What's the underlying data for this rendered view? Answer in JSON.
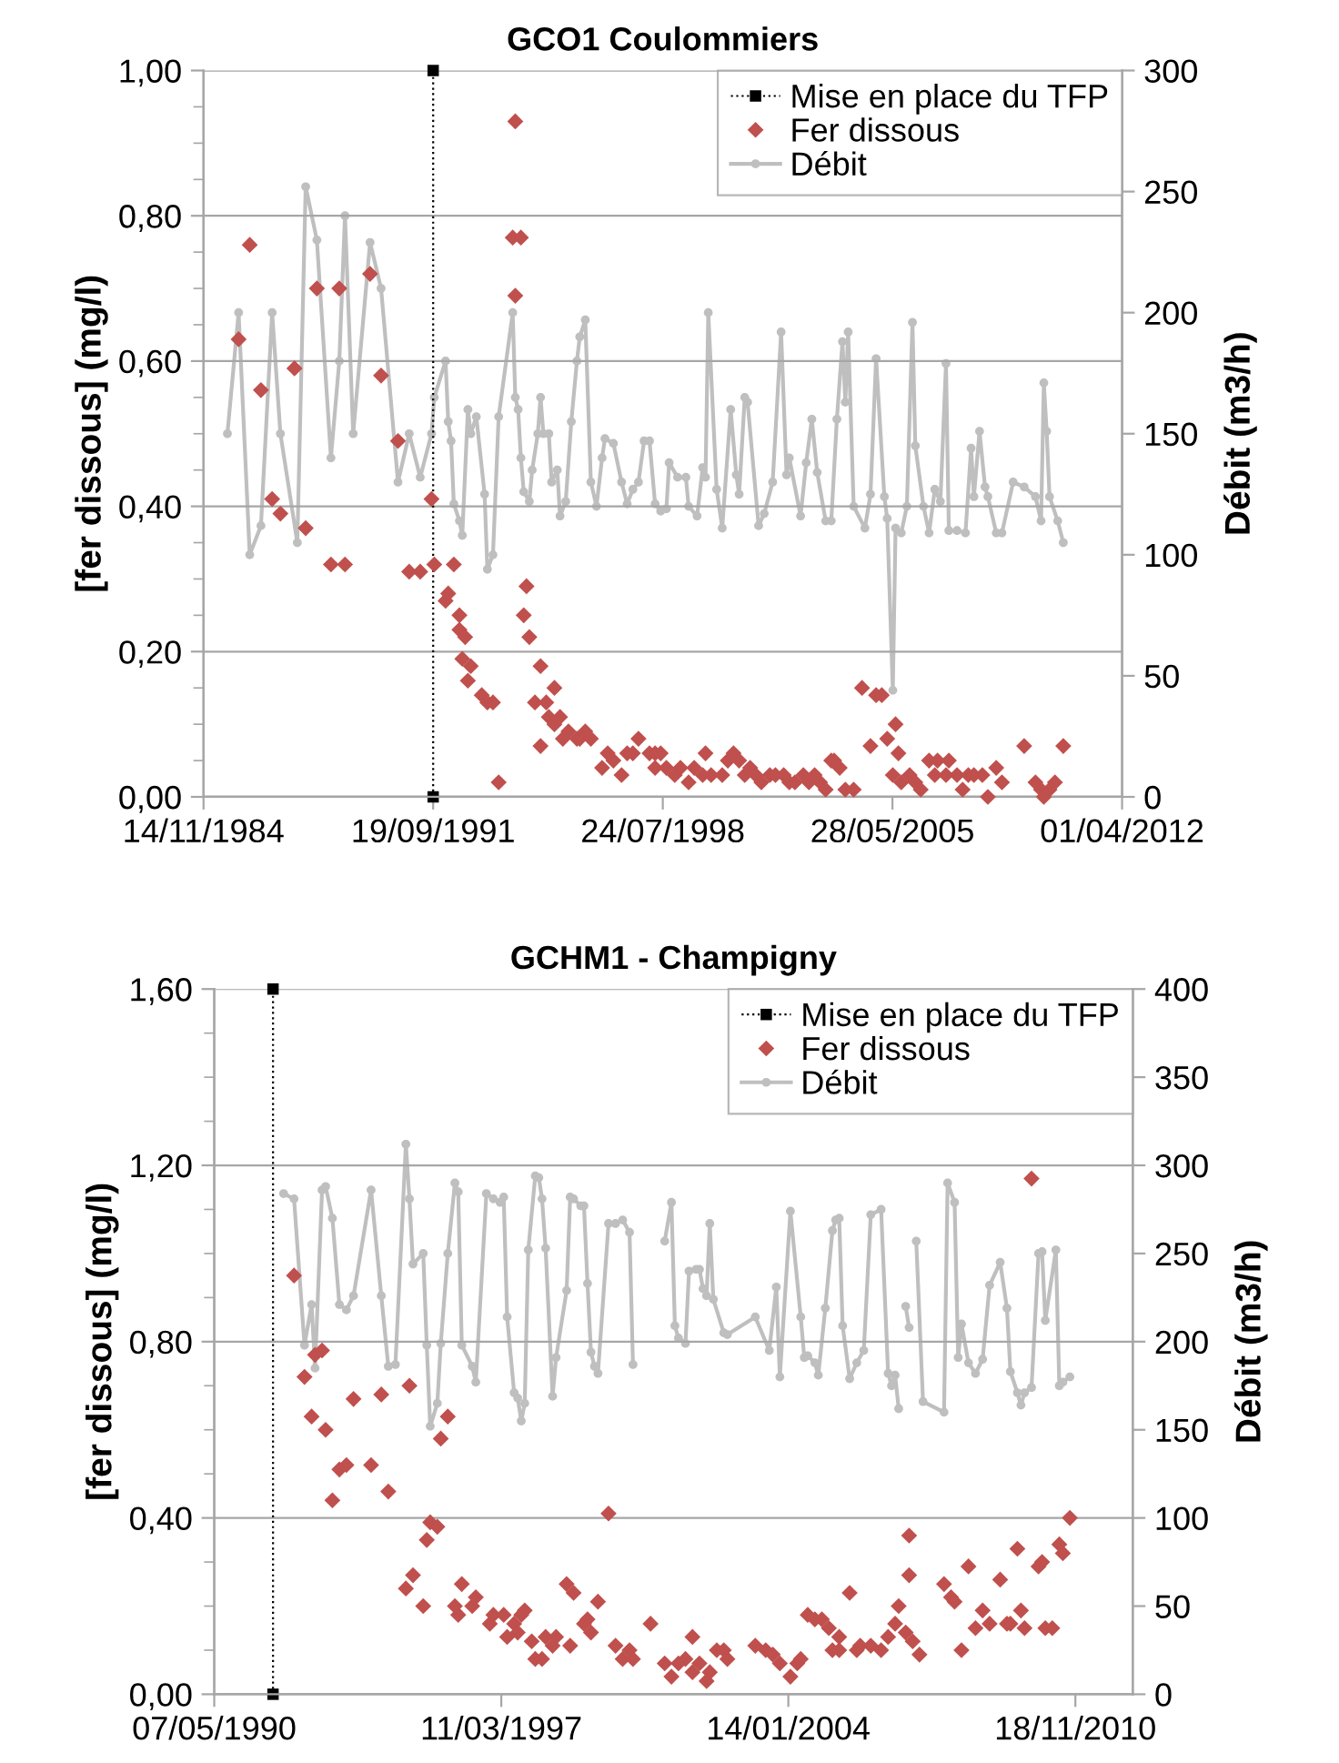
{
  "chart_data": [
    {
      "type": "line",
      "title": "GCO1 Coulommiers",
      "ylabel": "[fer dissous] (mg/l)",
      "y2label": "Débit (m3/h)",
      "grid": "y",
      "legend": "top right",
      "xlim": [
        "1984-11-14",
        "2012-04-01"
      ],
      "xticks": [
        {
          "value": "1984-11-14",
          "label": "14/11/1984"
        },
        {
          "value": "1991-09-19",
          "label": "19/09/1991"
        },
        {
          "value": "1998-07-24",
          "label": "24/07/1998"
        },
        {
          "value": "2005-05-28",
          "label": "28/05/2005"
        },
        {
          "value": "2012-04-01",
          "label": "01/04/2012"
        }
      ],
      "ylim": [
        0,
        1.0
      ],
      "yticks": [
        {
          "value": 0,
          "label": "0,00"
        },
        {
          "value": 0.05,
          "label": null
        },
        {
          "value": 0.1,
          "label": null
        },
        {
          "value": 0.15,
          "label": null
        },
        {
          "value": 0.2,
          "label": "0,20"
        },
        {
          "value": 0.25,
          "label": null
        },
        {
          "value": 0.3,
          "label": null
        },
        {
          "value": 0.35,
          "label": null
        },
        {
          "value": 0.4,
          "label": "0,40"
        },
        {
          "value": 0.45,
          "label": null
        },
        {
          "value": 0.5,
          "label": null
        },
        {
          "value": 0.55,
          "label": null
        },
        {
          "value": 0.6,
          "label": "0,60"
        },
        {
          "value": 0.65,
          "label": null
        },
        {
          "value": 0.7,
          "label": null
        },
        {
          "value": 0.75,
          "label": null
        },
        {
          "value": 0.8,
          "label": "0,80"
        },
        {
          "value": 0.85,
          "label": null
        },
        {
          "value": 0.9,
          "label": null
        },
        {
          "value": 0.95,
          "label": null
        },
        {
          "value": 1.0,
          "label": "1,00"
        }
      ],
      "y2lim": [
        0,
        300
      ],
      "y2ticks": [
        0,
        50,
        100,
        150,
        200,
        250,
        300
      ],
      "series": [
        {
          "name": "Mise en place du TFP",
          "color": "#000000",
          "marker": "square",
          "line_style": "dotted",
          "x": [
            "1991-09-19",
            "1991-09-19"
          ],
          "values": [
            0,
            1.0
          ]
        },
        {
          "name": "Fer dissous",
          "type": "scatter",
          "color": "#c0504d",
          "marker": "diamond",
          "x": [
            "1985-12",
            "1986-04",
            "1986-08",
            "1986-12",
            "1987-03",
            "1987-08",
            "1987-12",
            "1988-04",
            "1988-09",
            "1988-12",
            "1989-02",
            "1989-11",
            "1990-03",
            "1990-09",
            "1991-01",
            "1991-05",
            "1991-09",
            "1991-10",
            "1992-02",
            "1992-03",
            "1992-05",
            "1992-07",
            "1992-07",
            "1992-09",
            "1992-08",
            "1992-11",
            "1992-10",
            "1993-03",
            "1993-05",
            "1993-07",
            "1993-09",
            "1994-02",
            "1994-03",
            "1994-03",
            "1994-05",
            "1994-07",
            "1994-06",
            "1994-08",
            "1994-10",
            "1994-12",
            "1994-12",
            "1995-02",
            "1995-03",
            "1995-05",
            "1995-05",
            "1995-07",
            "1995-08",
            "1995-10",
            "1996-01",
            "1996-02",
            "1996-04",
            "1996-06",
            "1996-10",
            "1996-12",
            "1997-02",
            "1997-05",
            "1997-07",
            "1997-11",
            "1997-09",
            "1998-03",
            "1998-05",
            "1998-07",
            "1998-05",
            "1998-09",
            "1998-12",
            "1999-02",
            "1999-05",
            "1999-07",
            "1999-11",
            "1999-10",
            "2000-01",
            "2000-05",
            "2000-07",
            "2000-09",
            "2000-11",
            "2001-01",
            "2001-03",
            "2001-05",
            "2001-07",
            "2001-10",
            "2001-12",
            "2002-03",
            "2002-05",
            "2002-07",
            "2002-10",
            "2002-12",
            "2003-02",
            "2003-04",
            "2003-06",
            "2003-08",
            "2003-09",
            "2003-11",
            "2004-01",
            "2004-04",
            "2004-07",
            "2004-10",
            "2004-12",
            "2005-02",
            "2005-04",
            "2005-06",
            "2005-07",
            "2005-08",
            "2005-09",
            "2005-12",
            "2006-02",
            "2006-04",
            "2006-07",
            "2006-09",
            "2006-10",
            "2007-01",
            "2007-02",
            "2007-05",
            "2007-07",
            "2007-09",
            "2007-11",
            "2008-02",
            "2008-04",
            "2008-07",
            "2008-09",
            "2009-05",
            "2009-09",
            "2009-11",
            "2009-12",
            "2010-02",
            "2010-04",
            "2010-07"
          ],
          "values": [
            0.63,
            0.76,
            0.56,
            0.41,
            0.39,
            0.59,
            0.37,
            0.7,
            0.32,
            0.7,
            0.32,
            0.72,
            0.58,
            0.49,
            0.31,
            0.31,
            0.41,
            0.32,
            0.27,
            0.28,
            0.32,
            0.25,
            0.23,
            0.22,
            0.19,
            0.18,
            0.16,
            0.14,
            0.13,
            0.13,
            0.02,
            0.77,
            0.93,
            0.69,
            0.77,
            0.29,
            0.25,
            0.22,
            0.13,
            0.07,
            0.18,
            0.13,
            0.11,
            0.15,
            0.1,
            0.11,
            0.08,
            0.09,
            0.08,
            0.08,
            0.09,
            0.08,
            0.04,
            0.06,
            0.05,
            0.03,
            0.06,
            0.08,
            0.06,
            0.06,
            0.06,
            0.06,
            0.04,
            0.04,
            0.03,
            0.04,
            0.02,
            0.04,
            0.06,
            0.03,
            0.03,
            0.03,
            0.05,
            0.06,
            0.05,
            0.03,
            0.04,
            0.03,
            0.02,
            0.03,
            0.03,
            0.03,
            0.02,
            0.02,
            0.03,
            0.02,
            0.03,
            0.02,
            0.01,
            0.05,
            0.05,
            0.04,
            0.01,
            0.01,
            0.15,
            0.07,
            0.14,
            0.14,
            0.08,
            0.03,
            0.1,
            0.06,
            0.02,
            0.03,
            0.02,
            0.01,
            0.05,
            0.03,
            0.05,
            0.03,
            0.05,
            0.03,
            0.01,
            0.03,
            0.03,
            0.03,
            0.0,
            0.04,
            0.02,
            0.07,
            0.02,
            0.01,
            0.0,
            0.01,
            0.02,
            0.07
          ]
        },
        {
          "name": "Débit",
          "color": "#bfbfbf",
          "marker": "circle",
          "axis": "y2",
          "x": [
            "1985-08",
            "1985-12",
            "1986-04",
            "1986-08",
            "1986-12",
            "1987-03",
            "1987-09",
            "1987-12",
            "1988-04",
            "1988-09",
            "1988-12",
            "1989-02",
            "1989-05",
            "1989-11",
            "1990-03",
            "1990-09",
            "1991-01",
            "1991-05",
            "1991-09",
            "1991-10",
            "1992-02",
            "1992-03",
            "1992-04",
            "1992-05",
            "1992-07",
            "1992-08",
            "1992-10",
            "1992-11",
            "1993-01",
            "1993-04",
            "1993-05",
            "1993-07",
            "1993-09",
            "1994-02",
            "1994-03",
            "1994-04",
            "1994-05",
            "1994-06",
            "1994-08",
            "1994-09",
            "1994-11",
            "1994-12",
            "1995-01",
            "1995-03",
            "1995-04",
            "1995-06",
            "1995-07",
            "1995-09",
            "1995-11",
            "1996-01",
            "1996-02",
            "1996-04",
            "1996-06",
            "1996-08",
            "1996-10",
            "1996-11",
            "1997-02",
            "1997-05",
            "1997-07",
            "1997-09",
            "1997-11",
            "1998-01",
            "1998-03",
            "1998-05",
            "1998-07",
            "1998-09",
            "1998-10",
            "1999-01",
            "1999-04",
            "1999-05",
            "1999-08",
            "1999-10",
            "1999-11",
            "1999-12",
            "2000-03",
            "2000-05",
            "2000-08",
            "2000-10",
            "2000-11",
            "2001-01",
            "2001-02",
            "2001-06",
            "2001-08",
            "2001-11",
            "2002-02",
            "2002-04",
            "2002-05",
            "2002-09",
            "2002-11",
            "2003-01",
            "2003-03",
            "2003-06",
            "2003-08",
            "2003-10",
            "2003-12",
            "2004-01",
            "2004-02",
            "2004-04",
            "2004-08",
            "2004-10",
            "2004-12",
            "2005-03",
            "2005-04",
            "2005-06",
            "2005-07",
            "2005-09",
            "2005-11",
            "2006-01",
            "2006-02",
            "2006-05",
            "2006-07",
            "2006-09",
            "2006-11",
            "2007-01",
            "2007-02",
            "2007-05",
            "2007-08",
            "2007-10",
            "2007-11",
            "2008-01",
            "2008-03",
            "2008-04",
            "2008-07",
            "2008-09",
            "2009-01",
            "2009-05",
            "2009-09",
            "2009-11",
            "2009-12",
            "2010-01",
            "2010-02",
            "2010-05",
            "2010-07"
          ],
          "values": [
            150,
            200,
            100,
            112,
            200,
            150,
            105,
            252,
            230,
            140,
            180,
            240,
            150,
            229,
            210,
            130,
            150,
            132,
            150,
            165,
            180,
            155,
            147,
            121,
            114,
            108,
            160,
            150,
            157,
            125,
            94,
            100,
            157,
            200,
            165,
            160,
            140,
            126,
            122,
            135,
            150,
            165,
            150,
            150,
            130,
            135,
            116,
            122,
            155,
            180,
            190,
            197,
            130,
            120,
            140,
            148,
            146,
            130,
            121,
            127,
            130,
            147,
            147,
            121,
            118,
            119,
            138,
            132,
            132,
            120,
            116,
            136,
            132,
            200,
            127,
            111,
            160,
            133,
            125,
            165,
            163,
            112,
            117,
            130,
            192,
            133,
            140,
            116,
            138,
            156,
            134,
            114,
            114,
            156,
            188,
            163,
            192,
            120,
            111,
            125,
            181,
            124,
            115,
            44,
            111,
            109,
            120,
            196,
            145,
            120,
            109,
            127,
            122,
            179,
            110,
            110,
            109,
            144,
            124,
            151,
            128,
            124,
            109,
            109,
            130,
            128,
            124,
            114,
            171,
            151,
            124,
            114,
            105
          ]
        }
      ]
    },
    {
      "type": "line",
      "title": "GCHM1 - Champigny",
      "ylabel": "[fer dissous] (mg/l)",
      "y2label": "Débit (m3/h)",
      "grid": "y",
      "legend": "top right",
      "xlim": [
        "1990-05-07",
        "2012-04-01"
      ],
      "xticks": [
        {
          "value": "1990-05-07",
          "label": "07/05/1990"
        },
        {
          "value": "1997-03-11",
          "label": "11/03/1997"
        },
        {
          "value": "2004-01-14",
          "label": "14/01/2004"
        },
        {
          "value": "2010-11-18",
          "label": "18/11/2010"
        }
      ],
      "ylim": [
        0,
        1.6
      ],
      "yticks": [
        {
          "value": 0,
          "label": "0,00"
        },
        {
          "value": 0.1,
          "label": null
        },
        {
          "value": 0.2,
          "label": null
        },
        {
          "value": 0.3,
          "label": null
        },
        {
          "value": 0.4,
          "label": "0,40"
        },
        {
          "value": 0.5,
          "label": null
        },
        {
          "value": 0.6,
          "label": null
        },
        {
          "value": 0.7,
          "label": null
        },
        {
          "value": 0.8,
          "label": "0,80"
        },
        {
          "value": 0.9,
          "label": null
        },
        {
          "value": 1.0,
          "label": null
        },
        {
          "value": 1.1,
          "label": null
        },
        {
          "value": 1.2,
          "label": "1,20"
        },
        {
          "value": 1.3,
          "label": null
        },
        {
          "value": 1.4,
          "label": null
        },
        {
          "value": 1.5,
          "label": null
        },
        {
          "value": 1.6,
          "label": "1,60"
        }
      ],
      "y2lim": [
        0,
        400
      ],
      "y2ticks": [
        0,
        50,
        100,
        150,
        200,
        250,
        300,
        350,
        400
      ],
      "series": [
        {
          "name": "Mise en place du TFP",
          "color": "#000000",
          "marker": "square",
          "line_style": "dotted",
          "x": [
            "1991-10",
            "1991-10"
          ],
          "values": [
            0,
            1.6
          ]
        },
        {
          "name": "Fer dissous",
          "type": "scatter",
          "color": "#c0504d",
          "marker": "diamond",
          "x": [
            "1992-04",
            "1992-07",
            "1992-09",
            "1992-12",
            "1992-10",
            "1993-01",
            "1993-03",
            "1993-05",
            "1993-07",
            "1993-09",
            "1994-02",
            "1994-05",
            "1994-07",
            "1994-12",
            "1995-01",
            "1995-02",
            "1995-05",
            "1995-06",
            "1995-07",
            "1995-09",
            "1995-10",
            "1995-12",
            "1996-02",
            "1996-03",
            "1996-04",
            "1996-07",
            "1996-08",
            "1996-12",
            "1997-01",
            "1997-04",
            "1997-05",
            "1997-07",
            "1997-08",
            "1997-09",
            "1997-10",
            "1997-12",
            "1998-01",
            "1998-03",
            "1998-04",
            "1998-06",
            "1998-07",
            "1998-10",
            "1998-11",
            "1998-12",
            "1999-03",
            "1999-04",
            "1999-05",
            "1999-07",
            "1999-10",
            "1999-12",
            "2000-02",
            "2000-04",
            "2000-05",
            "2000-10",
            "2001-02",
            "2001-04",
            "2001-06",
            "2001-08",
            "2001-10",
            "2001-10",
            "2001-12",
            "2002-02",
            "2002-03",
            "2002-05",
            "2002-07",
            "2002-08",
            "2003-04",
            "2003-07",
            "2003-09",
            "2003-11",
            "2004-02",
            "2004-04",
            "2004-05",
            "2004-07",
            "2004-09",
            "2004-11",
            "2005-01",
            "2005-02",
            "2005-04",
            "2005-04",
            "2005-07",
            "2005-09",
            "2005-10",
            "2006-01",
            "2006-04",
            "2006-06",
            "2006-08",
            "2006-09",
            "2006-11",
            "2006-12",
            "2006-12",
            "2007-01",
            "2007-03",
            "2007-10",
            "2007-12",
            "2008-01",
            "2008-03",
            "2008-05",
            "2008-07",
            "2008-09",
            "2008-11",
            "2009-02",
            "2009-04",
            "2009-05",
            "2009-07",
            "2009-08",
            "2009-09",
            "2009-11",
            "2010-01",
            "2010-02",
            "2010-03",
            "2010-05",
            "2010-07",
            "2010-08",
            "2010-10"
          ],
          "values": [
            0.95,
            0.72,
            0.63,
            0.78,
            0.77,
            0.6,
            0.44,
            0.51,
            0.52,
            0.67,
            0.52,
            0.68,
            0.46,
            0.24,
            0.7,
            0.27,
            0.2,
            0.35,
            0.39,
            0.38,
            0.58,
            0.63,
            0.2,
            0.18,
            0.25,
            0.2,
            0.22,
            0.16,
            0.18,
            0.18,
            0.13,
            0.16,
            0.14,
            0.18,
            0.19,
            0.12,
            0.08,
            0.08,
            0.13,
            0.11,
            0.13,
            0.25,
            0.11,
            0.23,
            0.16,
            0.17,
            0.14,
            0.21,
            0.41,
            0.11,
            0.08,
            0.1,
            0.08,
            0.16,
            0.07,
            0.04,
            0.07,
            0.08,
            0.13,
            0.05,
            0.07,
            0.03,
            0.05,
            0.1,
            0.1,
            0.08,
            0.11,
            0.1,
            0.09,
            0.07,
            0.04,
            0.07,
            0.08,
            0.18,
            0.17,
            0.17,
            0.15,
            0.1,
            0.13,
            0.1,
            0.23,
            0.1,
            0.11,
            0.11,
            0.1,
            0.13,
            0.16,
            0.2,
            0.14,
            0.36,
            0.27,
            0.12,
            0.09,
            0.25,
            0.22,
            0.21,
            0.1,
            0.29,
            0.15,
            0.19,
            0.16,
            0.26,
            0.16,
            0.16,
            0.33,
            0.19,
            0.15,
            1.17,
            0.29,
            0.3,
            0.15,
            0.15,
            0.34,
            0.32,
            0.4
          ]
        },
        {
          "name": "Débit",
          "color": "#bfbfbf",
          "marker": "circle",
          "axis": "y2",
          "x": [
            "1992-01",
            "1992-04",
            "1992-07",
            "1992-09",
            "1992-10",
            "1992-12",
            "1993-01",
            "1993-03",
            "1993-05",
            "1993-07",
            "1993-09",
            "1994-02",
            "1994-05",
            "1994-07",
            "1994-09",
            "1994-12",
            "1995-01",
            "1995-02",
            "1995-05",
            "1995-06",
            "1995-07",
            "1995-09",
            "1995-10",
            "1995-12",
            "1996-02",
            "1996-03",
            "1996-04",
            "1996-07",
            "1996-08",
            "1996-11",
            "1997-01",
            "1997-03",
            "1997-04",
            "1997-05",
            "1997-07",
            "1997-08",
            "1997-09",
            "1997-10",
            "1997-11",
            "1998-01",
            "1998-02",
            "1998-03",
            "1998-04",
            "1998-06",
            "1998-07",
            "1998-10",
            "1998-11",
            "1998-12",
            "1999-02",
            "1999-03",
            "1999-04",
            "1999-05",
            "1999-06",
            "1999-07",
            "1999-10",
            "1999-12",
            "2000-02",
            "2000-04",
            "2000-05",
            "2000-09",
            "2001-02",
            "2001-04",
            "2001-05",
            "2001-06",
            "2001-08",
            "2001-09",
            "2001-11",
            "2001-12",
            "2002-01",
            "2002-02",
            "2002-03",
            "2002-04",
            "2002-07",
            "2002-08",
            "2003-04",
            "2003-08",
            "2003-10",
            "2003-11",
            "2004-02",
            "2004-05",
            "2004-06",
            "2004-07",
            "2004-09",
            "2004-10",
            "2004-12",
            "2005-02",
            "2005-03",
            "2005-04",
            "2005-05",
            "2005-07",
            "2005-09",
            "2005-11",
            "2006-01",
            "2006-04",
            "2006-06",
            "2006-07",
            "2006-08",
            "2006-09",
            "2006-10",
            "2006-11",
            "2006-12",
            "2007-01",
            "2007-02",
            "2007-04",
            "2007-10",
            "2007-11",
            "2008-01",
            "2008-02",
            "2008-03",
            "2008-05",
            "2008-07",
            "2008-09",
            "2008-11",
            "2009-02",
            "2009-04",
            "2009-05",
            "2009-07",
            "2009-08",
            "2009-09",
            "2009-11",
            "2010-01",
            "2010-02",
            "2010-03",
            "2010-06",
            "2010-07",
            "2010-08",
            "2010-10"
          ],
          "values": [
            284,
            281,
            198,
            221,
            185,
            286,
            288,
            270,
            221,
            218,
            226,
            286,
            226,
            186,
            187,
            312,
            281,
            244,
            250,
            198,
            152,
            165,
            199,
            250,
            290,
            285,
            198,
            186,
            177,
            284,
            281,
            279,
            282,
            214,
            171,
            168,
            155,
            165,
            252,
            294,
            293,
            281,
            253,
            169,
            191,
            229,
            282,
            281,
            277,
            277,
            233,
            194,
            186,
            182,
            267,
            267,
            269,
            262,
            187,
            null,
            257,
            279,
            209,
            202,
            199,
            240,
            241,
            241,
            230,
            226,
            267,
            224,
            205,
            204,
            214,
            195,
            231,
            180,
            274,
            214,
            191,
            192,
            188,
            181,
            219,
            263,
            269,
            270,
            209,
            179,
            188,
            195,
            272,
            275,
            182,
            175,
            181,
            162,
            null,
            220,
            208,
            null,
            257,
            166,
            160,
            290,
            279,
            191,
            210,
            188,
            182,
            190,
            232,
            245,
            219,
            183,
            171,
            164,
            171,
            174,
            250,
            251,
            212,
            252,
            175,
            177,
            180
          ]
        }
      ]
    }
  ]
}
